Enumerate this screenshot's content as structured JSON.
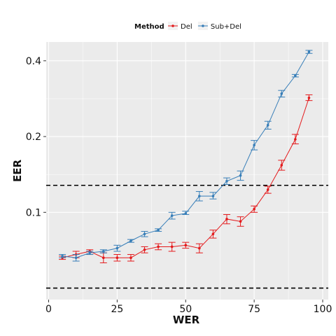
{
  "chart_data": {
    "type": "line",
    "xlabel": "WER",
    "ylabel": "EER",
    "xlim": [
      0,
      100
    ],
    "ylim": [
      0.045,
      0.475
    ],
    "yscale": "log",
    "x_ticks": [
      0,
      25,
      50,
      75,
      100
    ],
    "y_ticks": [
      0.1,
      0.2,
      0.4
    ],
    "y_tick_labels": [
      "0.1",
      "0.2",
      "0.4"
    ],
    "legend": {
      "title": "Method",
      "position": "top"
    },
    "grid": true,
    "hlines": [
      0.05,
      0.128
    ],
    "series": [
      {
        "name": "Del",
        "color": "#e41a1c",
        "x": [
          5,
          10,
          15,
          20,
          25,
          30,
          35,
          40,
          45,
          50,
          55,
          60,
          65,
          70,
          75,
          80,
          85,
          90,
          95
        ],
        "y": [
          0.066,
          0.068,
          0.07,
          0.066,
          0.066,
          0.066,
          0.071,
          0.073,
          0.073,
          0.074,
          0.072,
          0.082,
          0.094,
          0.092,
          0.103,
          0.123,
          0.154,
          0.195,
          0.285
        ],
        "lower": [
          0.065,
          0.066,
          0.068,
          0.063,
          0.064,
          0.064,
          0.069,
          0.071,
          0.07,
          0.072,
          0.069,
          0.079,
          0.09,
          0.088,
          0.1,
          0.119,
          0.147,
          0.187,
          0.278
        ],
        "upper": [
          0.067,
          0.07,
          0.071,
          0.069,
          0.068,
          0.068,
          0.073,
          0.075,
          0.076,
          0.076,
          0.075,
          0.085,
          0.098,
          0.096,
          0.106,
          0.127,
          0.161,
          0.204,
          0.293
        ]
      },
      {
        "name": "Sub+Del",
        "color": "#377eb8",
        "x": [
          5,
          10,
          15,
          20,
          25,
          30,
          35,
          40,
          45,
          50,
          55,
          60,
          65,
          70,
          75,
          80,
          85,
          90,
          95
        ],
        "y": [
          0.067,
          0.066,
          0.069,
          0.07,
          0.072,
          0.077,
          0.082,
          0.085,
          0.097,
          0.099,
          0.116,
          0.116,
          0.133,
          0.14,
          0.185,
          0.222,
          0.296,
          0.349,
          0.434
        ],
        "lower": [
          0.066,
          0.064,
          0.068,
          0.069,
          0.07,
          0.076,
          0.08,
          0.084,
          0.094,
          0.098,
          0.111,
          0.113,
          0.129,
          0.134,
          0.177,
          0.214,
          0.287,
          0.345,
          0.428
        ],
        "upper": [
          0.068,
          0.068,
          0.07,
          0.071,
          0.074,
          0.078,
          0.084,
          0.086,
          0.1,
          0.101,
          0.121,
          0.12,
          0.137,
          0.146,
          0.193,
          0.23,
          0.305,
          0.353,
          0.44
        ]
      }
    ]
  }
}
